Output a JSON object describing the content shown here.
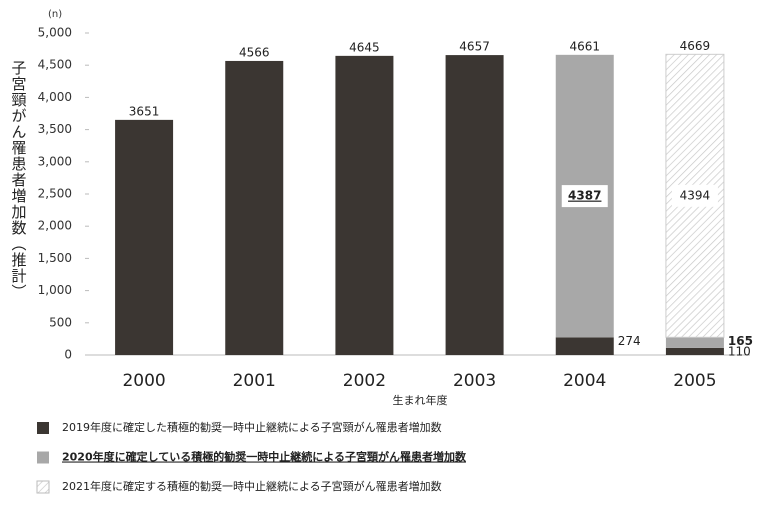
{
  "chart_data": {
    "type": "stacked-bar",
    "unit": "(n)",
    "ylabel": "子宮頸がん罹患者増加数（推計）",
    "xlabel": "生まれ年度",
    "categories": [
      "2000",
      "2001",
      "2002",
      "2003",
      "2004",
      "2005"
    ],
    "totals": [
      3651,
      4566,
      4645,
      4657,
      4661,
      4669
    ],
    "series": [
      {
        "name": "2019年度に確定した積極的勧奨一時中止継続による子宮頸がん罹患者増加数",
        "color": "#3b3632",
        "values": [
          3651,
          4566,
          4645,
          4657,
          274,
          110
        ]
      },
      {
        "name": "2020年度に確定している積極的勧奨一時中止継続による子宮頸がん罹患者増加数",
        "color": "#a8a8a8",
        "bold": true,
        "values": [
          null,
          null,
          null,
          null,
          4387,
          165
        ]
      },
      {
        "name": "2021年度に確定する積極的勧奨一時中止継続による子宮頸がん罹患者増加数",
        "color": "#ffffff",
        "pattern": "hatch",
        "values": [
          null,
          null,
          null,
          null,
          null,
          4394
        ]
      }
    ],
    "ylim": [
      0,
      5000
    ],
    "yticks": [
      0,
      500,
      {
        "value": 1000,
        "label": "1,000"
      },
      {
        "value": 1500,
        "label": "1,500"
      },
      {
        "value": 2000,
        "label": "2,000"
      },
      {
        "value": 2500,
        "label": "2,500"
      },
      {
        "value": 3000,
        "label": "3,000"
      },
      {
        "value": 3500,
        "label": "3,500"
      },
      {
        "value": 4000,
        "label": "4,000"
      },
      {
        "value": 4500,
        "label": "4,500"
      },
      {
        "value": 5000,
        "label": "5,000"
      }
    ],
    "grid": false
  }
}
